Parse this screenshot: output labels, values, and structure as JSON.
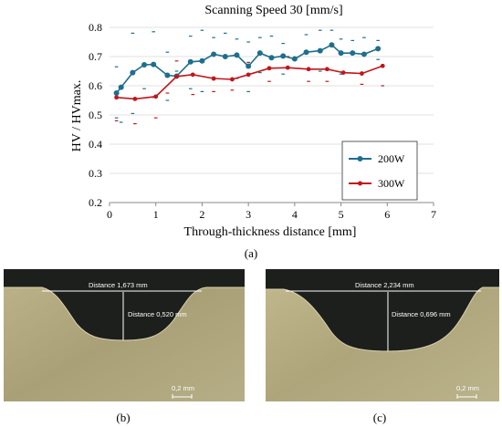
{
  "chart_data": {
    "type": "line",
    "title": "Scanning Speed 30 [mm/s]",
    "xlabel": "Through-thickness distance [mm]",
    "ylabel": "HV / HVmax.",
    "xlim": [
      0,
      7
    ],
    "ylim": [
      0.2,
      0.8
    ],
    "xticks": [
      "0",
      "1",
      "2",
      "3",
      "4",
      "5",
      "6",
      "7"
    ],
    "yticks": [
      "0.2",
      "0.3",
      "0.4",
      "0.5",
      "0.6",
      "0.7",
      "0.8"
    ],
    "grid": true,
    "legend_position": "right",
    "series": [
      {
        "name": "200W",
        "color": "#1f6e8c",
        "x": [
          0.15,
          0.25,
          0.5,
          0.75,
          0.95,
          1.25,
          1.45,
          1.75,
          2.0,
          2.25,
          2.5,
          2.75,
          3.0,
          3.25,
          3.5,
          3.75,
          4.0,
          4.25,
          4.55,
          4.8,
          5.0,
          5.25,
          5.5,
          5.8
        ],
        "y": [
          0.575,
          0.595,
          0.645,
          0.672,
          0.673,
          0.636,
          0.633,
          0.682,
          0.685,
          0.708,
          0.7,
          0.705,
          0.667,
          0.712,
          0.696,
          0.702,
          0.692,
          0.715,
          0.72,
          0.74,
          0.712,
          0.712,
          0.708,
          0.727
        ]
      },
      {
        "name": "300W",
        "color": "#c0161c",
        "x": [
          0.15,
          0.55,
          1.0,
          1.45,
          1.8,
          2.25,
          2.65,
          3.0,
          3.45,
          3.85,
          4.3,
          4.7,
          5.05,
          5.45,
          5.9
        ],
        "y": [
          0.56,
          0.555,
          0.563,
          0.632,
          0.638,
          0.625,
          0.622,
          0.638,
          0.66,
          0.662,
          0.657,
          0.657,
          0.645,
          0.642,
          0.668
        ]
      }
    ],
    "error_marks_200": [
      [
        0.15,
        0.665
      ],
      [
        0.15,
        0.49
      ],
      [
        0.25,
        0.475
      ],
      [
        0.5,
        0.78
      ],
      [
        0.5,
        0.505
      ],
      [
        0.75,
        0.59
      ],
      [
        0.95,
        0.785
      ],
      [
        0.95,
        0.56
      ],
      [
        1.25,
        0.715
      ],
      [
        1.25,
        0.55
      ],
      [
        1.45,
        0.65
      ],
      [
        1.75,
        0.77
      ],
      [
        1.75,
        0.59
      ],
      [
        2.0,
        0.79
      ],
      [
        2.0,
        0.58
      ],
      [
        2.25,
        0.765
      ],
      [
        2.25,
        0.62
      ],
      [
        2.5,
        0.78
      ],
      [
        2.75,
        0.76
      ],
      [
        2.75,
        0.625
      ],
      [
        3.0,
        0.75
      ],
      [
        3.0,
        0.58
      ],
      [
        3.25,
        0.765
      ],
      [
        3.25,
        0.645
      ],
      [
        3.5,
        0.77
      ],
      [
        3.75,
        0.745
      ],
      [
        3.75,
        0.64
      ],
      [
        4.25,
        0.775
      ],
      [
        4.55,
        0.79
      ],
      [
        4.55,
        0.65
      ],
      [
        4.8,
        0.79
      ],
      [
        5.0,
        0.76
      ],
      [
        5.0,
        0.64
      ],
      [
        5.25,
        0.755
      ],
      [
        5.5,
        0.765
      ],
      [
        5.8,
        0.755
      ],
      [
        5.8,
        0.69
      ]
    ],
    "error_marks_300": [
      [
        0.15,
        0.48
      ],
      [
        0.55,
        0.47
      ],
      [
        1.0,
        0.49
      ],
      [
        1.25,
        0.575
      ],
      [
        1.45,
        0.685
      ],
      [
        1.8,
        0.57
      ],
      [
        2.25,
        0.58
      ],
      [
        2.65,
        0.585
      ],
      [
        3.0,
        0.68
      ],
      [
        3.45,
        0.615
      ],
      [
        3.85,
        0.7
      ],
      [
        4.3,
        0.615
      ],
      [
        4.7,
        0.615
      ],
      [
        5.45,
        0.605
      ],
      [
        5.9,
        0.6
      ]
    ]
  },
  "captions": {
    "a": "(a)",
    "b": "(b)",
    "c": "(c)"
  },
  "micrographs": {
    "b": {
      "width_label": "Distance 1,673 mm",
      "depth_label": "Distance 0,520 mm",
      "scale_label": "0,2 mm"
    },
    "c": {
      "width_label": "Distance 2,234 mm",
      "depth_label": "Distance 0,696 mm",
      "scale_label": "0,2 mm"
    }
  }
}
